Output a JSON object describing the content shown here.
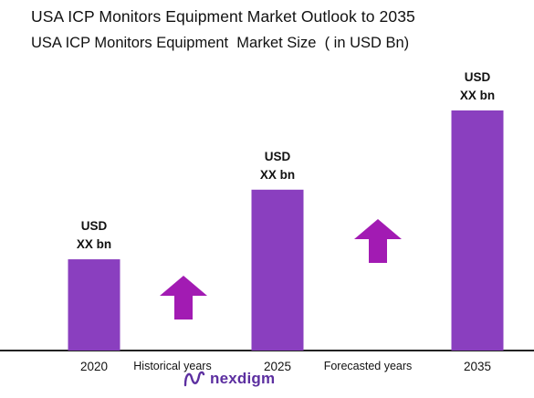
{
  "title": "USA ICP Monitors Equipment Market Outlook to 2035",
  "chart_data": {
    "type": "bar",
    "title": "USA ICP Monitors Equipment  Market Size  ( in USD Bn)",
    "categories": [
      "2020",
      "2025",
      "2035"
    ],
    "values": [
      0.38,
      0.67,
      1.0
    ],
    "value_labels": [
      [
        "USD",
        "XX bn"
      ],
      [
        "USD",
        "XX bn"
      ],
      [
        "USD",
        "XX bn"
      ]
    ],
    "period_labels": [
      "Historical years",
      "Forecasted years"
    ],
    "bar_color": "#8a3fbf",
    "arrow_color": "#a21bb3",
    "grid": false,
    "legend": "none"
  },
  "brand": {
    "name": "nexdigm",
    "color": "#5c2fa0"
  }
}
